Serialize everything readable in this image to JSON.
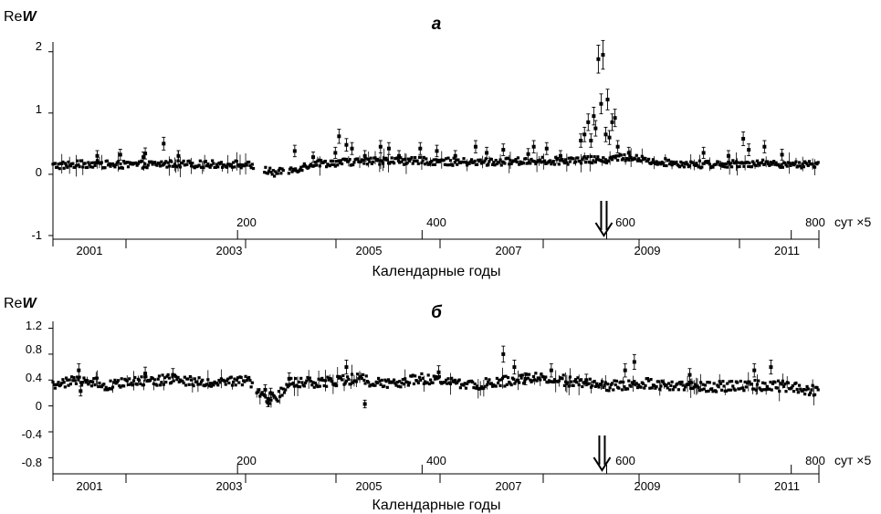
{
  "chart_data": [
    {
      "type": "scatter",
      "panel_label": "а",
      "ylabel_prefix": "Re",
      "ylabel_var": "W",
      "y_ticks": [
        "2",
        "1",
        "0",
        "-1"
      ],
      "ylim": [
        -1,
        2.1
      ],
      "x_ticks": [
        "200",
        "400",
        "600",
        "800"
      ],
      "x_unit": "сут ×5",
      "xlim": [
        0,
        830
      ],
      "year_labels": [
        "2001",
        "2003",
        "2005",
        "2007",
        "2009",
        "2011"
      ],
      "xlabel": "Календарные годы",
      "arrow_x": 597,
      "series": [
        {
          "baseline": [
            [
              0,
              0.14
            ],
            [
              40,
              0.17
            ],
            [
              80,
              0.15
            ],
            [
              120,
              0.17
            ],
            [
              160,
              0.16
            ],
            [
              195,
              0.17
            ],
            [
              215,
              0.14
            ],
            [
              240,
              0.02
            ],
            [
              262,
              0.08
            ],
            [
              280,
              0.17
            ],
            [
              320,
              0.2
            ],
            [
              360,
              0.22
            ],
            [
              400,
              0.22
            ],
            [
              440,
              0.2
            ],
            [
              480,
              0.2
            ],
            [
              520,
              0.22
            ],
            [
              560,
              0.22
            ],
            [
              600,
              0.24
            ],
            [
              620,
              0.28
            ],
            [
              660,
              0.2
            ],
            [
              700,
              0.16
            ],
            [
              740,
              0.18
            ],
            [
              800,
              0.17
            ],
            [
              830,
              0.14
            ]
          ],
          "spread": 0.06,
          "gaps": [
            [
              218,
              228
            ],
            [
              250,
              255
            ]
          ],
          "outliers": [
            [
              48,
              0.3
            ],
            [
              73,
              0.32
            ],
            [
              98,
              0.28
            ],
            [
              100,
              0.34
            ],
            [
              120,
              0.5
            ],
            [
              136,
              0.3
            ],
            [
              262,
              0.38
            ],
            [
              282,
              0.28
            ],
            [
              306,
              0.35
            ],
            [
              310,
              0.62
            ],
            [
              318,
              0.48
            ],
            [
              324,
              0.42
            ],
            [
              338,
              0.3
            ],
            [
              355,
              0.45
            ],
            [
              364,
              0.42
            ],
            [
              375,
              0.3
            ],
            [
              398,
              0.42
            ],
            [
              416,
              0.38
            ],
            [
              436,
              0.3
            ],
            [
              458,
              0.45
            ],
            [
              470,
              0.35
            ],
            [
              488,
              0.4
            ],
            [
              515,
              0.33
            ],
            [
              521,
              0.45
            ],
            [
              535,
              0.42
            ],
            [
              550,
              0.3
            ],
            [
              572,
              0.55
            ],
            [
              576,
              0.65
            ],
            [
              580,
              0.85
            ],
            [
              583,
              0.55
            ],
            [
              586,
              0.95
            ],
            [
              588,
              0.75
            ],
            [
              591,
              1.88
            ],
            [
              594,
              1.15
            ],
            [
              596,
              1.95
            ],
            [
              599,
              0.65
            ],
            [
              601,
              1.22
            ],
            [
              603,
              0.6
            ],
            [
              606,
              0.85
            ],
            [
              609,
              0.92
            ],
            [
              612,
              0.45
            ],
            [
              624,
              0.35
            ],
            [
              705,
              0.35
            ],
            [
              732,
              0.3
            ],
            [
              748,
              0.58
            ],
            [
              754,
              0.4
            ],
            [
              771,
              0.45
            ],
            [
              790,
              0.32
            ]
          ]
        }
      ]
    },
    {
      "type": "scatter",
      "panel_label": "б",
      "ylabel_prefix": "Re",
      "ylabel_var": "W",
      "y_ticks": [
        "1.2",
        "0.8",
        "0.4",
        "0",
        "-0.4",
        "-0.8"
      ],
      "ylim": [
        -0.95,
        1.25
      ],
      "x_ticks": [
        "200",
        "400",
        "600",
        "800"
      ],
      "x_unit": "сут ×5",
      "xlim": [
        0,
        830
      ],
      "year_labels": [
        "2001",
        "2003",
        "2005",
        "2007",
        "2009",
        "2011"
      ],
      "xlabel": "Календарные годы",
      "arrow_x": 595,
      "series": [
        {
          "baseline": [
            [
              0,
              0.33
            ],
            [
              30,
              0.4
            ],
            [
              60,
              0.32
            ],
            [
              100,
              0.38
            ],
            [
              130,
              0.42
            ],
            [
              170,
              0.33
            ],
            [
              195,
              0.38
            ],
            [
              212,
              0.38
            ],
            [
              232,
              0.1
            ],
            [
              242,
              0.12
            ],
            [
              258,
              0.38
            ],
            [
              290,
              0.36
            ],
            [
              330,
              0.42
            ],
            [
              360,
              0.34
            ],
            [
              400,
              0.42
            ],
            [
              430,
              0.36
            ],
            [
              460,
              0.33
            ],
            [
              500,
              0.4
            ],
            [
              530,
              0.45
            ],
            [
              560,
              0.38
            ],
            [
              600,
              0.3
            ],
            [
              640,
              0.35
            ],
            [
              680,
              0.3
            ],
            [
              720,
              0.3
            ],
            [
              760,
              0.32
            ],
            [
              800,
              0.3
            ],
            [
              830,
              0.22
            ]
          ],
          "spread": 0.08,
          "gaps": [
            [
              216,
              220
            ]
          ],
          "outliers": [
            [
              28,
              0.55
            ],
            [
              30,
              0.23
            ],
            [
              100,
              0.5
            ],
            [
              130,
              0.48
            ],
            [
              230,
              0.25
            ],
            [
              233,
              0.05
            ],
            [
              236,
              0.2
            ],
            [
              256,
              0.42
            ],
            [
              318,
              0.6
            ],
            [
              338,
              0.03
            ],
            [
              418,
              0.52
            ],
            [
              488,
              0.8
            ],
            [
              500,
              0.6
            ],
            [
              512,
              0.42
            ],
            [
              540,
              0.55
            ],
            [
              578,
              0.4
            ],
            [
              620,
              0.55
            ],
            [
              630,
              0.68
            ],
            [
              690,
              0.48
            ],
            [
              760,
              0.55
            ],
            [
              778,
              0.6
            ]
          ]
        }
      ]
    }
  ]
}
